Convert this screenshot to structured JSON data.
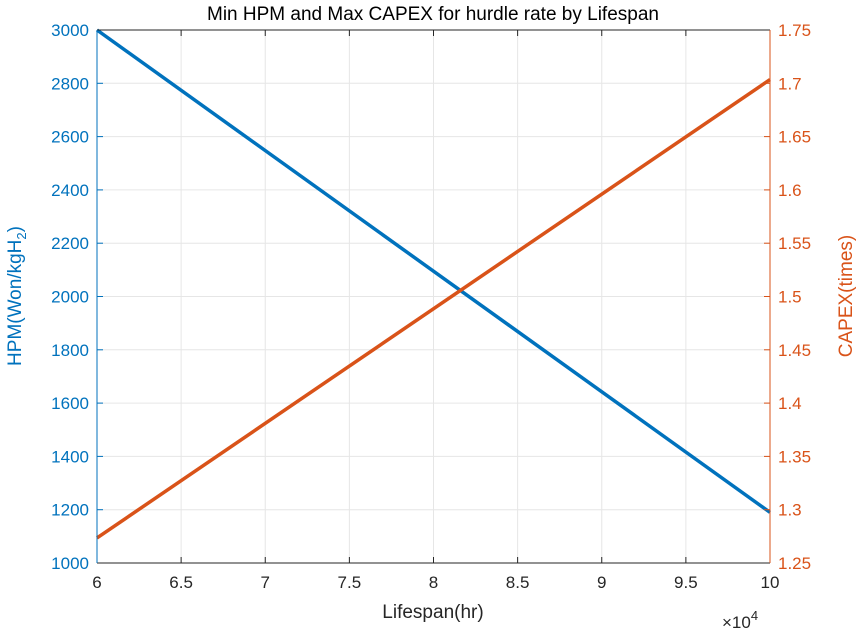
{
  "chart_data": {
    "type": "line",
    "title": "Min HPM and Max CAPEX for hurdle rate by Lifespan",
    "xlabel": "Lifespan(hr)",
    "x_multiplier_base": "×10",
    "x_multiplier_exp": "4",
    "xlim": [
      6,
      10
    ],
    "x_ticks": [
      "6",
      "6.5",
      "7",
      "7.5",
      "8",
      "8.5",
      "9",
      "9.5",
      "10"
    ],
    "y_left": {
      "label_main": "HPM(Won/kgH",
      "label_sub": "2",
      "label_close": ")",
      "lim": [
        1000,
        3000
      ],
      "ticks": [
        "1000",
        "1200",
        "1400",
        "1600",
        "1800",
        "2000",
        "2200",
        "2400",
        "2600",
        "2800",
        "3000"
      ],
      "color": "#0072BD"
    },
    "y_right": {
      "label": "CAPEX(times)",
      "lim": [
        1.25,
        1.75
      ],
      "ticks": [
        "1.25",
        "1.3",
        "1.35",
        "1.4",
        "1.45",
        "1.5",
        "1.55",
        "1.6",
        "1.65",
        "1.7",
        "1.75"
      ],
      "color": "#D95319"
    },
    "grid": true,
    "series": [
      {
        "axis": "left",
        "color": "#0072BD",
        "x": [
          6,
          10
        ],
        "y": [
          3000,
          1190
        ]
      },
      {
        "axis": "right",
        "color": "#D95319",
        "x": [
          6,
          10
        ],
        "y": [
          1.2735,
          1.7035
        ]
      }
    ]
  }
}
